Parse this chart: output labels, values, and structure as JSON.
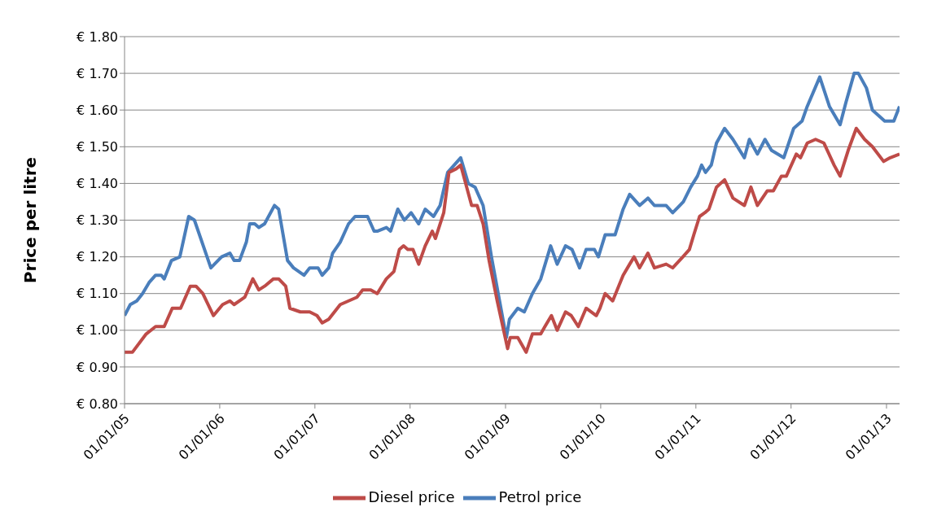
{
  "chart_data": {
    "type": "line",
    "ylabel": "Price per litre",
    "legend": "bottom",
    "grid": "y",
    "marker": "none",
    "line_style": "solid",
    "xlim": [
      "2005-01-01",
      "2013-02-20"
    ],
    "xticks": [
      {
        "value": "2005-01-01",
        "label": "01/01/05"
      },
      {
        "value": "2006-01-01",
        "label": "01/01/06"
      },
      {
        "value": "2007-01-01",
        "label": "01/01/07"
      },
      {
        "value": "2008-01-01",
        "label": "01/01/08"
      },
      {
        "value": "2009-01-01",
        "label": "01/01/09"
      },
      {
        "value": "2010-01-01",
        "label": "01/01/10"
      },
      {
        "value": "2011-01-01",
        "label": "01/01/11"
      },
      {
        "value": "2012-01-01",
        "label": "01/01/12"
      },
      {
        "value": "2013-01-01",
        "label": "01/01/13"
      }
    ],
    "ylim": [
      0.8,
      1.8
    ],
    "yticks": [
      {
        "value": 0.8,
        "label": "€ 0.80"
      },
      {
        "value": 0.9,
        "label": "€ 0.90"
      },
      {
        "value": 1.0,
        "label": "€ 1.00"
      },
      {
        "value": 1.1,
        "label": "€ 1.10"
      },
      {
        "value": 1.2,
        "label": "€ 1.20"
      },
      {
        "value": 1.3,
        "label": "€ 1.30"
      },
      {
        "value": 1.4,
        "label": "€ 1.40"
      },
      {
        "value": 1.5,
        "label": "€ 1.50"
      },
      {
        "value": 1.6,
        "label": "€ 1.60"
      },
      {
        "value": 1.7,
        "label": "€ 1.70"
      },
      {
        "value": 1.8,
        "label": "€ 1.80"
      }
    ],
    "series": [
      {
        "name": "Petrol price",
        "color": "#4a7ebb",
        "x": [
          "2005-01-01",
          "2005-01-23",
          "2005-02-17",
          "2005-03-11",
          "2005-04-05",
          "2005-04-30",
          "2005-05-22",
          "2005-06-02",
          "2005-06-30",
          "2005-08-01",
          "2005-09-04",
          "2005-09-26",
          "2005-11-28",
          "2006-01-08",
          "2006-02-09",
          "2006-02-25",
          "2006-03-18",
          "2006-04-13",
          "2006-04-26",
          "2006-05-15",
          "2006-05-31",
          "2006-06-22",
          "2006-07-30",
          "2006-08-15",
          "2006-09-18",
          "2006-10-11",
          "2006-11-20",
          "2006-12-12",
          "2007-01-13",
          "2007-01-29",
          "2007-02-23",
          "2007-03-10",
          "2007-04-08",
          "2007-05-10",
          "2007-06-04",
          "2007-06-26",
          "2007-07-22",
          "2007-08-16",
          "2007-08-28",
          "2007-10-02",
          "2007-10-18",
          "2007-11-15",
          "2007-12-10",
          "2008-01-05",
          "2008-02-03",
          "2008-02-28",
          "2008-03-31",
          "2008-04-25",
          "2008-05-24",
          "2008-06-18",
          "2008-07-13",
          "2008-08-11",
          "2008-09-06",
          "2008-10-07",
          "2008-11-08",
          "2008-12-09",
          "2009-01-04",
          "2009-01-16",
          "2009-02-17",
          "2009-03-14",
          "2009-04-14",
          "2009-05-16",
          "2009-06-23",
          "2009-07-18",
          "2009-08-19",
          "2009-09-13",
          "2009-10-12",
          "2009-11-06",
          "2009-12-08",
          "2009-12-23",
          "2010-01-18",
          "2010-02-25",
          "2010-03-28",
          "2010-04-22",
          "2010-05-30",
          "2010-07-01",
          "2010-07-26",
          "2010-09-09",
          "2010-10-04",
          "2010-11-14",
          "2010-12-12",
          "2011-01-07",
          "2011-01-23",
          "2011-02-07",
          "2011-03-01",
          "2011-03-21",
          "2011-04-21",
          "2011-05-23",
          "2011-07-06",
          "2011-07-25",
          "2011-08-25",
          "2011-09-23",
          "2011-10-18",
          "2011-12-04",
          "2012-01-11",
          "2012-02-12",
          "2012-03-03",
          "2012-04-20",
          "2012-05-27",
          "2012-07-07",
          "2012-07-29",
          "2012-08-30",
          "2012-09-15",
          "2012-10-16",
          "2012-11-08",
          "2012-12-25",
          "2013-01-29",
          "2013-02-20"
        ],
        "values": [
          1.04,
          1.07,
          1.08,
          1.1,
          1.13,
          1.15,
          1.15,
          1.14,
          1.19,
          1.2,
          1.31,
          1.3,
          1.17,
          1.2,
          1.21,
          1.19,
          1.19,
          1.24,
          1.29,
          1.29,
          1.28,
          1.29,
          1.34,
          1.33,
          1.19,
          1.17,
          1.15,
          1.17,
          1.17,
          1.15,
          1.17,
          1.21,
          1.24,
          1.29,
          1.31,
          1.31,
          1.31,
          1.27,
          1.27,
          1.28,
          1.27,
          1.33,
          1.3,
          1.32,
          1.29,
          1.33,
          1.31,
          1.34,
          1.43,
          1.45,
          1.47,
          1.4,
          1.39,
          1.34,
          1.2,
          1.08,
          0.98,
          1.03,
          1.06,
          1.05,
          1.1,
          1.14,
          1.23,
          1.18,
          1.23,
          1.22,
          1.17,
          1.22,
          1.22,
          1.2,
          1.26,
          1.26,
          1.33,
          1.37,
          1.34,
          1.36,
          1.34,
          1.34,
          1.32,
          1.35,
          1.39,
          1.42,
          1.45,
          1.43,
          1.45,
          1.51,
          1.55,
          1.52,
          1.47,
          1.52,
          1.48,
          1.52,
          1.49,
          1.47,
          1.55,
          1.57,
          1.61,
          1.69,
          1.61,
          1.56,
          1.62,
          1.7,
          1.7,
          1.66,
          1.6,
          1.57,
          1.57,
          1.61
        ]
      },
      {
        "name": "Diesel price",
        "color": "#be4b48",
        "x": [
          "2005-01-01",
          "2005-01-31",
          "2005-03-25",
          "2005-04-30",
          "2005-06-02",
          "2005-07-03",
          "2005-08-04",
          "2005-09-10",
          "2005-10-02",
          "2005-10-28",
          "2005-12-08",
          "2006-01-12",
          "2006-02-09",
          "2006-02-25",
          "2006-04-07",
          "2006-05-08",
          "2006-05-31",
          "2006-06-22",
          "2006-07-26",
          "2006-08-15",
          "2006-09-11",
          "2006-09-27",
          "2006-11-06",
          "2006-12-12",
          "2007-01-09",
          "2007-01-29",
          "2007-02-23",
          "2007-04-08",
          "2007-05-10",
          "2007-06-11",
          "2007-07-03",
          "2007-07-22",
          "2007-08-03",
          "2007-08-28",
          "2007-10-02",
          "2007-10-31",
          "2007-11-21",
          "2007-12-07",
          "2007-12-23",
          "2008-01-12",
          "2008-02-03",
          "2008-02-28",
          "2008-03-26",
          "2008-04-07",
          "2008-05-09",
          "2008-05-29",
          "2008-06-26",
          "2008-07-13",
          "2008-08-24",
          "2008-09-14",
          "2008-10-07",
          "2008-10-30",
          "2008-11-30",
          "2009-01-09",
          "2009-01-19",
          "2009-02-17",
          "2009-03-21",
          "2009-04-14",
          "2009-05-16",
          "2009-06-01",
          "2009-06-26",
          "2009-07-18",
          "2009-08-19",
          "2009-09-10",
          "2009-10-07",
          "2009-11-06",
          "2009-12-15",
          "2009-12-29",
          "2010-01-18",
          "2010-02-16",
          "2010-03-28",
          "2010-04-22",
          "2010-05-09",
          "2010-05-30",
          "2010-07-01",
          "2010-07-26",
          "2010-09-09",
          "2010-10-04",
          "2010-11-12",
          "2010-12-07",
          "2010-12-24",
          "2011-01-15",
          "2011-02-04",
          "2011-02-20",
          "2011-03-21",
          "2011-04-21",
          "2011-05-23",
          "2011-07-06",
          "2011-07-31",
          "2011-08-25",
          "2011-10-02",
          "2011-10-25",
          "2011-11-25",
          "2011-12-14",
          "2012-01-21",
          "2012-02-06",
          "2012-03-03",
          "2012-04-04",
          "2012-05-06",
          "2012-06-14",
          "2012-07-07",
          "2012-08-07",
          "2012-09-07",
          "2012-10-09",
          "2012-11-08",
          "2012-12-21",
          "2013-01-15",
          "2013-02-20"
        ],
        "values": [
          0.94,
          0.94,
          0.99,
          1.01,
          1.01,
          1.06,
          1.06,
          1.12,
          1.12,
          1.1,
          1.04,
          1.07,
          1.08,
          1.07,
          1.09,
          1.14,
          1.11,
          1.12,
          1.14,
          1.14,
          1.12,
          1.06,
          1.05,
          1.05,
          1.04,
          1.02,
          1.03,
          1.07,
          1.08,
          1.09,
          1.11,
          1.11,
          1.11,
          1.1,
          1.14,
          1.16,
          1.22,
          1.23,
          1.22,
          1.22,
          1.18,
          1.23,
          1.27,
          1.25,
          1.32,
          1.43,
          1.44,
          1.45,
          1.34,
          1.34,
          1.29,
          1.19,
          1.08,
          0.95,
          0.98,
          0.98,
          0.94,
          0.99,
          0.99,
          1.01,
          1.04,
          1.0,
          1.05,
          1.04,
          1.01,
          1.06,
          1.04,
          1.06,
          1.1,
          1.08,
          1.15,
          1.18,
          1.2,
          1.17,
          1.21,
          1.17,
          1.18,
          1.17,
          1.2,
          1.22,
          1.26,
          1.31,
          1.32,
          1.33,
          1.39,
          1.41,
          1.36,
          1.34,
          1.39,
          1.34,
          1.38,
          1.38,
          1.42,
          1.42,
          1.48,
          1.47,
          1.51,
          1.52,
          1.51,
          1.45,
          1.42,
          1.49,
          1.55,
          1.52,
          1.5,
          1.46,
          1.47,
          1.48
        ]
      }
    ]
  }
}
